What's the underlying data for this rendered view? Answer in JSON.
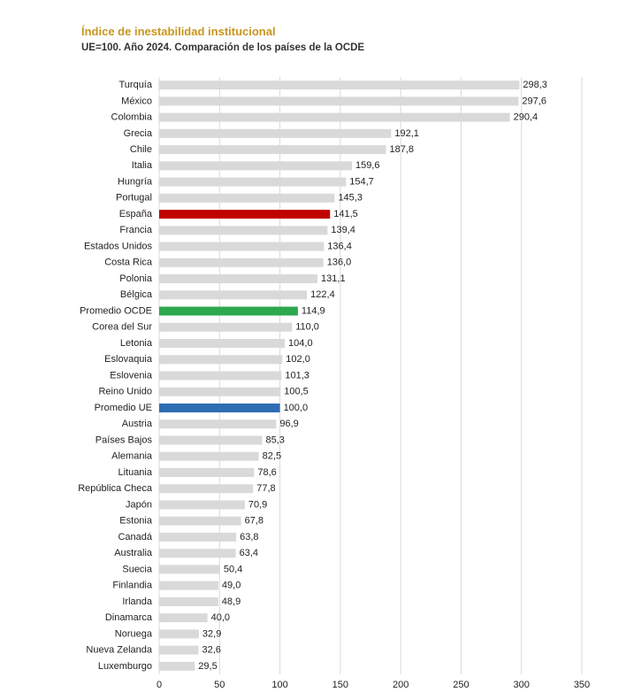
{
  "chart_data": {
    "type": "barh",
    "title": "Índice de inestabilidad institucional",
    "subtitle": "UE=100. Año 2024. Comparación de los países de la OCDE",
    "categories": [
      "Turquía",
      "México",
      "Colombia",
      "Grecia",
      "Chile",
      "Italia",
      "Hungría",
      "Portugal",
      "España",
      "Francia",
      "Estados Unidos",
      "Costa Rica",
      "Polonia",
      "Bélgica",
      "Promedio OCDE",
      "Corea del Sur",
      "Letonia",
      "Eslovaquia",
      "Eslovenia",
      "Reino Unido",
      "Promedio UE",
      "Austria",
      "Países Bajos",
      "Alemania",
      "Lituania",
      "República Checa",
      "Japón",
      "Estonia",
      "Canadá",
      "Australia",
      "Suecia",
      "Finlandia",
      "Irlanda",
      "Dinamarca",
      "Noruega",
      "Nueva Zelanda",
      "Luxemburgo"
    ],
    "values": [
      298.3,
      297.6,
      290.4,
      192.1,
      187.8,
      159.6,
      154.7,
      145.3,
      141.5,
      139.4,
      136.4,
      136.0,
      131.1,
      122.4,
      114.9,
      110.0,
      104.0,
      102.0,
      101.3,
      100.5,
      100.0,
      96.9,
      85.3,
      82.5,
      78.6,
      77.8,
      70.9,
      67.8,
      63.8,
      63.4,
      50.4,
      49.0,
      48.9,
      40.0,
      32.9,
      32.6,
      29.5
    ],
    "value_labels": [
      "298,3",
      "297,6",
      "290,4",
      "192,1",
      "187,8",
      "159,6",
      "154,7",
      "145,3",
      "141,5",
      "139,4",
      "136,4",
      "136,0",
      "131,1",
      "122,4",
      "114,9",
      "110,0",
      "104,0",
      "102,0",
      "101,3",
      "100,5",
      "100,0",
      "96,9",
      "85,3",
      "82,5",
      "78,6",
      "77,8",
      "70,9",
      "67,8",
      "63,8",
      "63,4",
      "50,4",
      "49,0",
      "48,9",
      "40,0",
      "32,9",
      "32,6",
      "29,5"
    ],
    "colors": [
      "#d9d9d9",
      "#d9d9d9",
      "#d9d9d9",
      "#d9d9d9",
      "#d9d9d9",
      "#d9d9d9",
      "#d9d9d9",
      "#d9d9d9",
      "#c00000",
      "#d9d9d9",
      "#d9d9d9",
      "#d9d9d9",
      "#d9d9d9",
      "#d9d9d9",
      "#2ea84f",
      "#d9d9d9",
      "#d9d9d9",
      "#d9d9d9",
      "#d9d9d9",
      "#d9d9d9",
      "#2e6db4",
      "#d9d9d9",
      "#d9d9d9",
      "#d9d9d9",
      "#d9d9d9",
      "#d9d9d9",
      "#d9d9d9",
      "#d9d9d9",
      "#d9d9d9",
      "#d9d9d9",
      "#d9d9d9",
      "#d9d9d9",
      "#d9d9d9",
      "#d9d9d9",
      "#d9d9d9",
      "#d9d9d9",
      "#d9d9d9"
    ],
    "xlim": [
      0,
      350
    ],
    "xticks": [
      0,
      50,
      100,
      150,
      200,
      250,
      300,
      350
    ],
    "grid": true
  }
}
